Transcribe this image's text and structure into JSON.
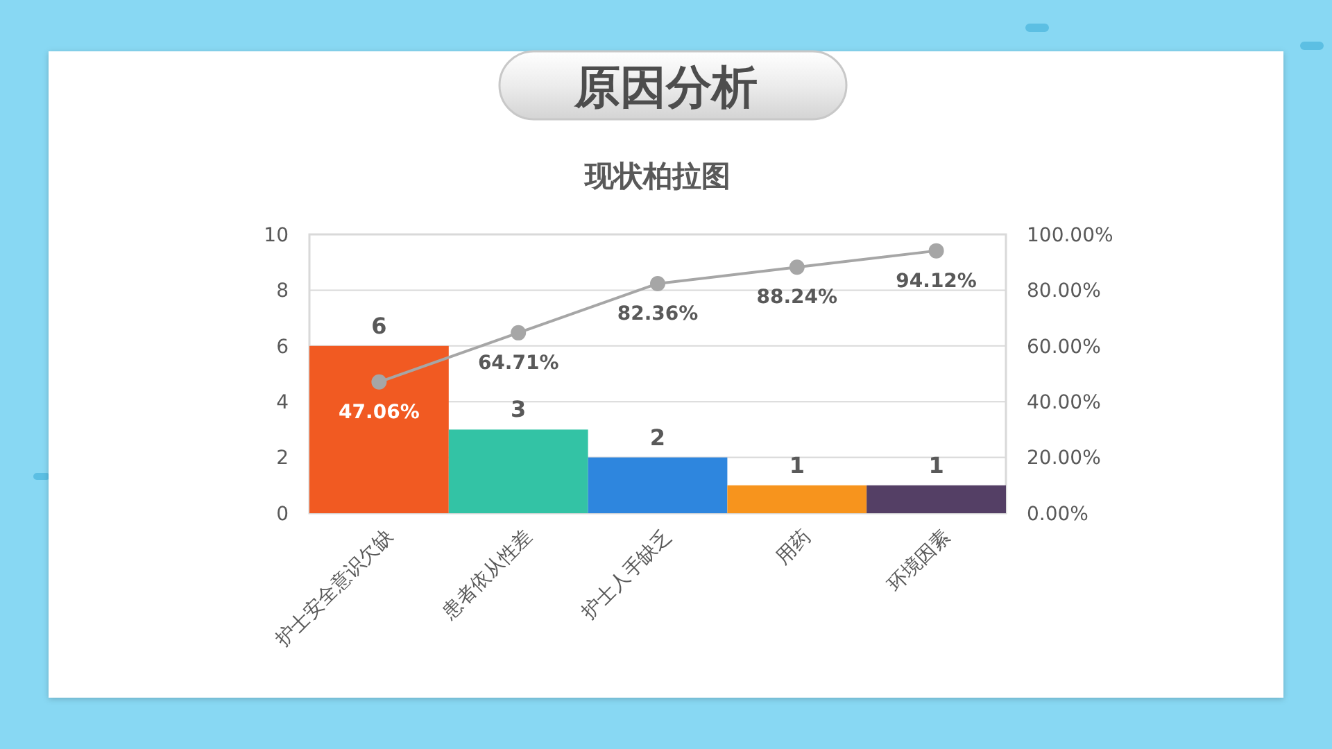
{
  "chart_data": {
    "type": "bar",
    "title": "原因分析",
    "subtitle": "现状柏拉图",
    "categories": [
      "护士安全意识欠缺",
      "患者依从性差",
      "护士人手缺乏",
      "用药",
      "环境因素"
    ],
    "series": [
      {
        "values": [
          6,
          3,
          2,
          1,
          1
        ],
        "colors": [
          "#f15a22",
          "#33c3a5",
          "#2e86de",
          "#f7941d",
          "#543f65"
        ],
        "value_labels": [
          "6",
          "3",
          "2",
          "1",
          "1"
        ]
      },
      {
        "type": "line",
        "axis": "y2",
        "color": "#a6a6a6",
        "marker": "circle",
        "line_style": "solid",
        "values": [
          47.06,
          64.71,
          82.36,
          88.24,
          94.12
        ],
        "value_labels": [
          "47.06%",
          "64.71%",
          "82.36%",
          "88.24%",
          "94.12%"
        ]
      }
    ],
    "ylim": [
      0,
      10
    ],
    "yticks": [
      0,
      2,
      4,
      6,
      8,
      10
    ],
    "y2lim": [
      0,
      100
    ],
    "y2ticks": [
      {
        "value": 0,
        "label": "0.00%"
      },
      {
        "value": 20,
        "label": "20.00%"
      },
      {
        "value": 40,
        "label": "40.00%"
      },
      {
        "value": 60,
        "label": "60.00%"
      },
      {
        "value": 80,
        "label": "80.00%"
      },
      {
        "value": 100,
        "label": "100.00%"
      }
    ],
    "grid": "y"
  }
}
